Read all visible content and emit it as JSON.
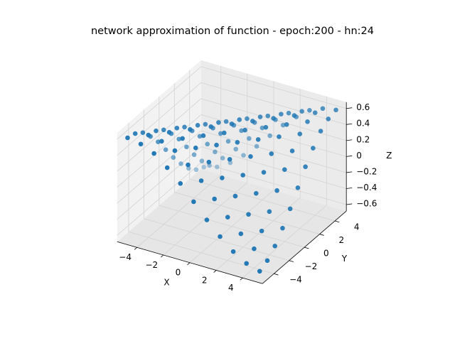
{
  "chart_data": {
    "type": "scatter3d",
    "title": "network approximation of function - epoch:200 - hn:24",
    "xlabel": "X",
    "ylabel": "Y",
    "zlabel": "Z",
    "color": "#1f77b4",
    "xlim": [
      -5.5,
      5.5
    ],
    "ylim": [
      -5.5,
      5.5
    ],
    "zlim": [
      -0.68,
      0.68
    ],
    "xticks": [
      {
        "value": -4,
        "label": "−4"
      },
      {
        "value": -2,
        "label": "−2"
      },
      0,
      2,
      4
    ],
    "yticks": [
      {
        "value": -4,
        "label": "−4"
      },
      {
        "value": -2,
        "label": "−2"
      },
      0,
      2,
      4
    ],
    "zticks": [
      {
        "value": -0.6,
        "label": "−0.6"
      },
      {
        "value": -0.4,
        "label": "−0.4"
      },
      {
        "value": -0.2,
        "label": "−0.2"
      },
      0.0,
      0.2,
      0.4,
      0.6
    ],
    "grid": true,
    "x": [
      -5,
      -5,
      -5,
      -5,
      -5,
      -5,
      -5,
      -5,
      -5,
      -5,
      -5,
      -4,
      -4,
      -4,
      -4,
      -4,
      -4,
      -4,
      -4,
      -4,
      -4,
      -4,
      -3,
      -3,
      -3,
      -3,
      -3,
      -3,
      -3,
      -3,
      -3,
      -3,
      -3,
      -2,
      -2,
      -2,
      -2,
      -2,
      -2,
      -2,
      -2,
      -2,
      -2,
      -2,
      -1,
      -1,
      -1,
      -1,
      -1,
      -1,
      -1,
      -1,
      -1,
      -1,
      -1,
      0,
      0,
      0,
      0,
      0,
      0,
      0,
      0,
      0,
      0,
      0,
      1,
      1,
      1,
      1,
      1,
      1,
      1,
      1,
      1,
      1,
      1,
      2,
      2,
      2,
      2,
      2,
      2,
      2,
      2,
      2,
      2,
      2,
      3,
      3,
      3,
      3,
      3,
      3,
      3,
      3,
      3,
      3,
      3,
      4,
      4,
      4,
      4,
      4,
      4,
      4,
      4,
      4,
      4,
      4,
      5,
      5,
      5,
      5,
      5,
      5,
      5,
      5,
      5,
      5,
      5
    ],
    "y": [
      -5,
      -4,
      -3,
      -2,
      -1,
      0,
      1,
      2,
      3,
      4,
      5,
      -5,
      -4,
      -3,
      -2,
      -1,
      0,
      1,
      2,
      3,
      4,
      5,
      -5,
      -4,
      -3,
      -2,
      -1,
      0,
      1,
      2,
      3,
      4,
      5,
      -5,
      -4,
      -3,
      -2,
      -1,
      0,
      1,
      2,
      3,
      4,
      5,
      -5,
      -4,
      -3,
      -2,
      -1,
      0,
      1,
      2,
      3,
      4,
      5,
      -5,
      -4,
      -3,
      -2,
      -1,
      0,
      1,
      2,
      3,
      4,
      5,
      -5,
      -4,
      -3,
      -2,
      -1,
      0,
      1,
      2,
      3,
      4,
      5,
      -5,
      -4,
      -3,
      -2,
      -1,
      0,
      1,
      2,
      3,
      4,
      5,
      -5,
      -4,
      -3,
      -2,
      -1,
      0,
      1,
      2,
      3,
      4,
      5,
      -5,
      -4,
      -3,
      -2,
      -1,
      0,
      1,
      2,
      3,
      4,
      5,
      -5,
      -4,
      -3,
      -2,
      -1,
      0,
      1,
      2,
      3,
      4,
      5
    ],
    "z": [
      0.6,
      0.57,
      0.5,
      0.37,
      0.22,
      0.04,
      -0.14,
      -0.3,
      -0.44,
      -0.54,
      -0.59,
      0.57,
      0.6,
      0.57,
      0.5,
      0.37,
      0.22,
      0.04,
      -0.14,
      -0.3,
      -0.44,
      -0.54,
      0.5,
      0.57,
      0.6,
      0.57,
      0.5,
      0.37,
      0.22,
      0.04,
      -0.14,
      -0.3,
      -0.44,
      0.37,
      0.5,
      0.57,
      0.6,
      0.57,
      0.5,
      0.37,
      0.22,
      0.04,
      -0.14,
      -0.3,
      0.22,
      0.37,
      0.5,
      0.57,
      0.6,
      0.57,
      0.5,
      0.37,
      0.22,
      0.04,
      -0.14,
      0.04,
      0.22,
      0.37,
      0.5,
      0.57,
      0.6,
      0.57,
      0.5,
      0.37,
      0.22,
      0.04,
      -0.14,
      0.04,
      0.22,
      0.37,
      0.5,
      0.57,
      0.6,
      0.57,
      0.5,
      0.37,
      0.22,
      -0.3,
      -0.14,
      0.04,
      0.22,
      0.37,
      0.5,
      0.57,
      0.6,
      0.57,
      0.5,
      0.37,
      -0.44,
      -0.3,
      -0.14,
      0.04,
      0.22,
      0.37,
      0.5,
      0.57,
      0.6,
      0.57,
      0.5,
      -0.54,
      -0.44,
      -0.3,
      -0.14,
      0.04,
      0.22,
      0.37,
      0.5,
      0.57,
      0.6,
      0.57,
      -0.59,
      -0.54,
      -0.44,
      -0.3,
      -0.14,
      0.04,
      0.22,
      0.37,
      0.5,
      0.57,
      0.6
    ]
  }
}
